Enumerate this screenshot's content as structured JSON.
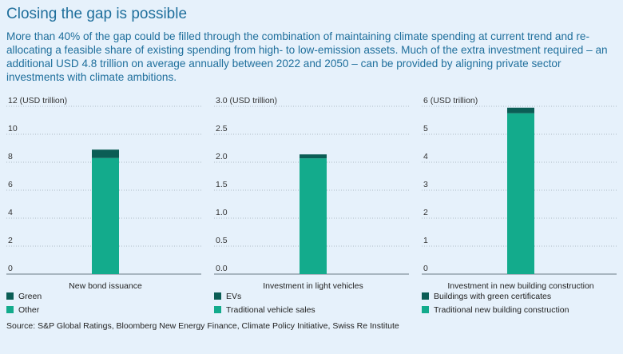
{
  "title": "Closing the gap is possible",
  "subtitle": "More than 40% of the gap could be filled through the combination of maintaining climate spending at current trend and re-allocating a feasible share of existing spending from high- to low-emission assets. Much of the extra investment required – an additional USD 4.8 trillion on average annually between 2022 and 2050 – can be provided by aligning private sector investments with climate ambitions.",
  "source": "Source: S&P Global Ratings, Bloomberg New Energy Finance, Climate Policy Initiative, Swiss Re Institute",
  "colors": {
    "green": "#0b5d55",
    "other": "#13ab8c",
    "grid": "#9aa8b3",
    "background": "#e6f1fb",
    "text_accent": "#1f6f9c"
  },
  "chart_data": [
    {
      "type": "bar",
      "stacked": true,
      "ylabel": "(USD trillion)",
      "ylim": [
        0,
        12
      ],
      "yticks": [
        "0",
        "2",
        "4",
        "6",
        "8",
        "10",
        "12"
      ],
      "ytick_values": [
        0,
        2,
        4,
        6,
        8,
        10,
        12
      ],
      "categories": [
        "New bond issuance"
      ],
      "series": [
        {
          "name": "Other",
          "values": [
            8.3
          ],
          "color": "#13ab8c"
        },
        {
          "name": "Green",
          "values": [
            0.6
          ],
          "color": "#0b5d55"
        }
      ],
      "legend": [
        "Green",
        "Other"
      ]
    },
    {
      "type": "bar",
      "stacked": true,
      "ylabel": "(USD trillion)",
      "ylim": [
        0,
        3.0
      ],
      "yticks": [
        "0.0",
        "0.5",
        "1.0",
        "1.5",
        "2.0",
        "2.5",
        "3.0"
      ],
      "ytick_values": [
        0,
        0.5,
        1.0,
        1.5,
        2.0,
        2.5,
        3.0
      ],
      "categories": [
        "Investment in light vehicles"
      ],
      "series": [
        {
          "name": "Traditional vehicle sales",
          "values": [
            2.07
          ],
          "color": "#13ab8c"
        },
        {
          "name": "EVs",
          "values": [
            0.07
          ],
          "color": "#0b5d55"
        }
      ],
      "legend": [
        "EVs",
        "Traditional vehicle sales"
      ]
    },
    {
      "type": "bar",
      "stacked": true,
      "ylabel": "(USD trillion)",
      "ylim": [
        0,
        6
      ],
      "yticks": [
        "0",
        "1",
        "2",
        "3",
        "4",
        "5",
        "6"
      ],
      "ytick_values": [
        0,
        1,
        2,
        3,
        4,
        5,
        6
      ],
      "categories": [
        "Investment in new building construction"
      ],
      "series": [
        {
          "name": "Traditional new building construction",
          "values": [
            5.75
          ],
          "color": "#13ab8c"
        },
        {
          "name": "Buildings with green certificates",
          "values": [
            0.2
          ],
          "color": "#0b5d55"
        }
      ],
      "legend": [
        "Buildings with green certificates",
        "Traditional new building construction"
      ]
    }
  ]
}
